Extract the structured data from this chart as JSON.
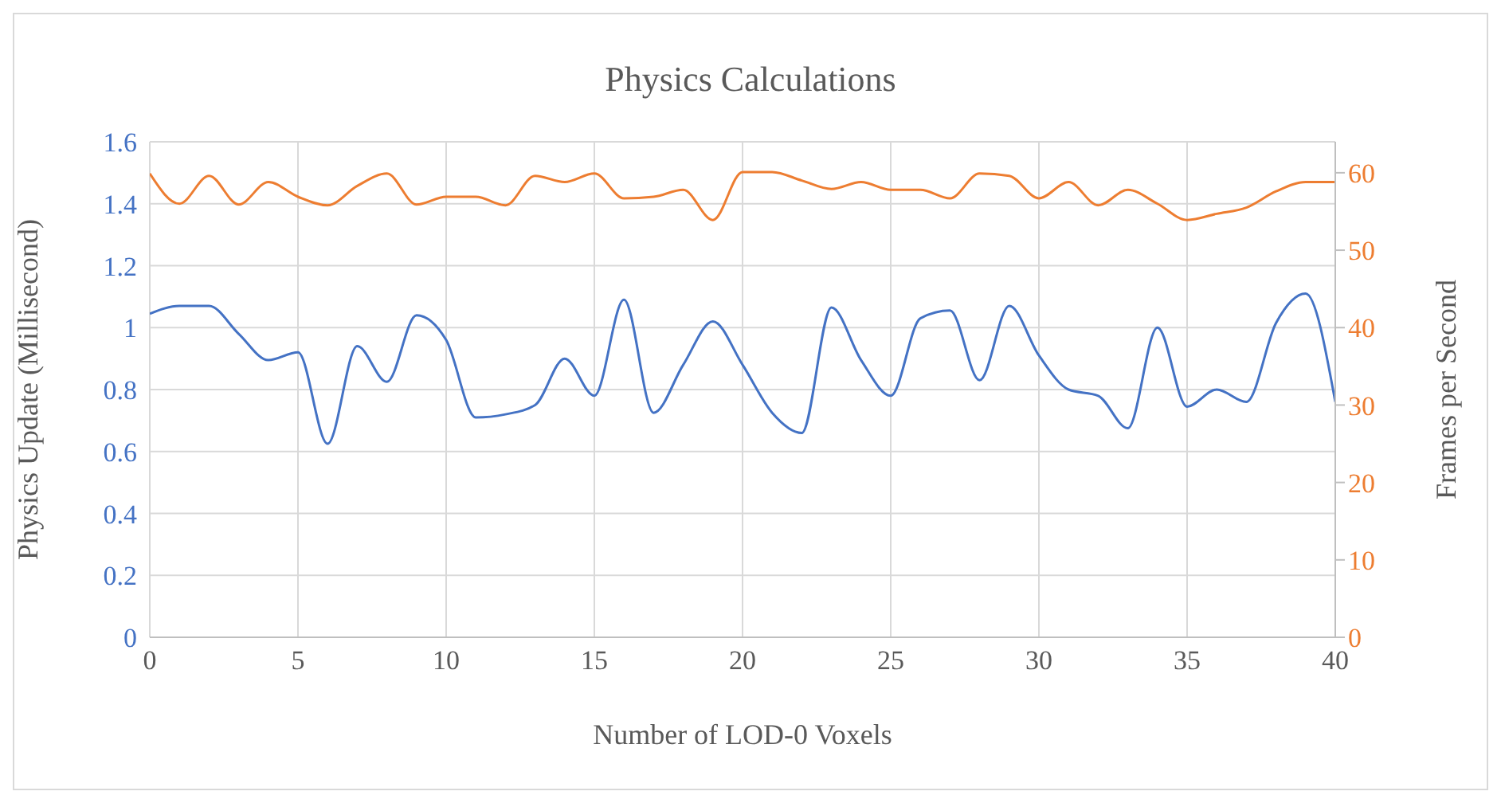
{
  "chart_data": {
    "type": "line",
    "title": "Physics Calculations",
    "xlabel": "Number of LOD-0 Voxels",
    "ylabel": "Physics Update (Millisecond)",
    "y2label": "Frames per Second",
    "x": [
      0,
      1,
      2,
      3,
      4,
      5,
      6,
      7,
      8,
      9,
      10,
      11,
      12,
      13,
      14,
      15,
      16,
      17,
      18,
      19,
      20,
      21,
      22,
      23,
      24,
      25,
      26,
      27,
      28,
      29,
      30,
      31,
      32,
      33,
      34,
      35,
      36,
      37,
      38,
      39,
      40
    ],
    "series": [
      {
        "color": "#4472c4",
        "values": [
          1.045,
          1.07,
          1.07,
          0.98,
          0.895,
          0.92,
          0.625,
          0.94,
          0.825,
          1.04,
          0.96,
          0.71,
          0.72,
          0.75,
          0.9,
          0.78,
          1.09,
          0.725,
          0.88,
          1.02,
          0.88,
          0.725,
          0.66,
          1.065,
          0.895,
          0.78,
          1.03,
          1.055,
          0.83,
          1.07,
          0.91,
          0.8,
          0.78,
          0.675,
          1.0,
          0.745,
          0.8,
          0.76,
          1.015,
          1.11,
          0.76
        ]
      },
      {
        "color": "#ed7d31",
        "axis": "y2",
        "values": [
          59.9,
          56,
          59.6,
          55.9,
          58.8,
          56.9,
          55.8,
          58.3,
          59.9,
          55.9,
          56.9,
          56.9,
          55.8,
          59.6,
          58.8,
          59.9,
          56.7,
          56.9,
          57.8,
          53.9,
          60.1,
          60.1,
          59,
          57.9,
          58.8,
          57.8,
          57.8,
          56.7,
          59.9,
          59.6,
          56.7,
          58.8,
          55.8,
          57.8,
          56,
          53.9,
          54.7,
          55.5,
          57.6,
          58.8,
          58.8
        ]
      }
    ],
    "xlim": [
      0,
      40
    ],
    "xticks": [
      0,
      5,
      10,
      15,
      20,
      25,
      30,
      35,
      40
    ],
    "ylim": [
      0,
      1.6
    ],
    "yticks": [
      0,
      {
        "value": 0.2,
        "label": "0.2"
      },
      {
        "value": 0.4,
        "label": "0.4"
      },
      {
        "value": 0.6,
        "label": "0.6"
      },
      {
        "value": 0.8,
        "label": "0.8"
      },
      1,
      {
        "value": 1.2,
        "label": "1.2"
      },
      {
        "value": 1.4,
        "label": "1.4"
      },
      {
        "value": 1.6,
        "label": "1.6"
      }
    ],
    "y2lim": [
      0,
      64
    ],
    "y2ticks": [
      0,
      10,
      20,
      30,
      40,
      50,
      60
    ],
    "grid": true,
    "marker": "none",
    "line_style": "solid"
  }
}
